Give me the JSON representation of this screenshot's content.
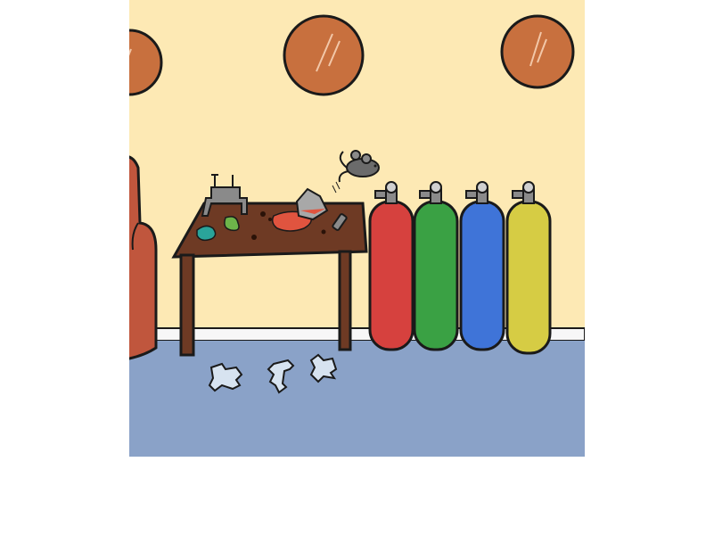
{
  "scene": {
    "name": "lab-room-escape-scene",
    "colors": {
      "wall": "#fde9b4",
      "floor": "#8aa2c8",
      "baseboard": "#f7f7f7",
      "porthole": "#c8703e",
      "armchair": "#c0563d",
      "table": "#6e3a24",
      "tank_red": "#d6413e",
      "tank_green": "#3aa144",
      "tank_blue": "#3f74d8",
      "tank_yellow": "#d6cc44",
      "mouse": "#6b6b6b",
      "puzzle_piece": "#d7e3f0"
    },
    "items": {
      "portholes": [
        "porthole-left",
        "porthole-center",
        "porthole-right"
      ],
      "tanks": [
        "red",
        "green",
        "blue",
        "yellow"
      ],
      "floor_pieces": [
        "puzzle-piece-1",
        "puzzle-piece-2",
        "puzzle-piece-3"
      ]
    }
  }
}
